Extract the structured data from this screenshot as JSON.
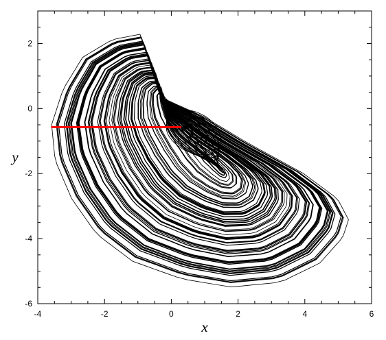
{
  "chart_data": {
    "type": "line",
    "title": "",
    "xlabel": "x",
    "ylabel": "y",
    "xlim": [
      -4,
      6
    ],
    "ylim": [
      -6,
      3
    ],
    "xticks": [
      -4,
      -2,
      0,
      2,
      4,
      6
    ],
    "yticks": [
      -6,
      -4,
      -2,
      0,
      2
    ],
    "grid": false,
    "legend": "none",
    "series": [
      {
        "kind": "chaotic-attractor-trajectory",
        "color": "#000000",
        "outer_envelope": [
          [
            -0.95,
            2.32
          ],
          [
            -1.8,
            2.15
          ],
          [
            -2.7,
            1.6
          ],
          [
            -3.3,
            0.6
          ],
          [
            -3.65,
            -0.5
          ],
          [
            -3.55,
            -1.6
          ],
          [
            -3.05,
            -2.8
          ],
          [
            -2.3,
            -3.9
          ],
          [
            -1.2,
            -4.75
          ],
          [
            0.3,
            -5.3
          ],
          [
            1.8,
            -5.55
          ],
          [
            3.3,
            -5.4
          ],
          [
            4.5,
            -4.8
          ],
          [
            5.2,
            -4.0
          ],
          [
            5.38,
            -3.45
          ],
          [
            5.05,
            -2.8
          ],
          [
            4.0,
            -2.0
          ],
          [
            2.3,
            -1.05
          ],
          [
            1.0,
            -0.25
          ],
          [
            -0.3,
            0.35
          ],
          [
            -0.95,
            2.32
          ]
        ],
        "inner_orbit": {
          "center": [
            0.7,
            -0.7
          ],
          "semi_axes": [
            0.9,
            0.6
          ]
        },
        "region_x": [
          -3.7,
          5.4
        ],
        "region_y": [
          -5.6,
          2.35
        ]
      },
      {
        "kind": "section-line",
        "color": "#ff0000",
        "x": [
          -3.6,
          0.3
        ],
        "y": [
          -0.57,
          -0.57
        ]
      }
    ]
  }
}
